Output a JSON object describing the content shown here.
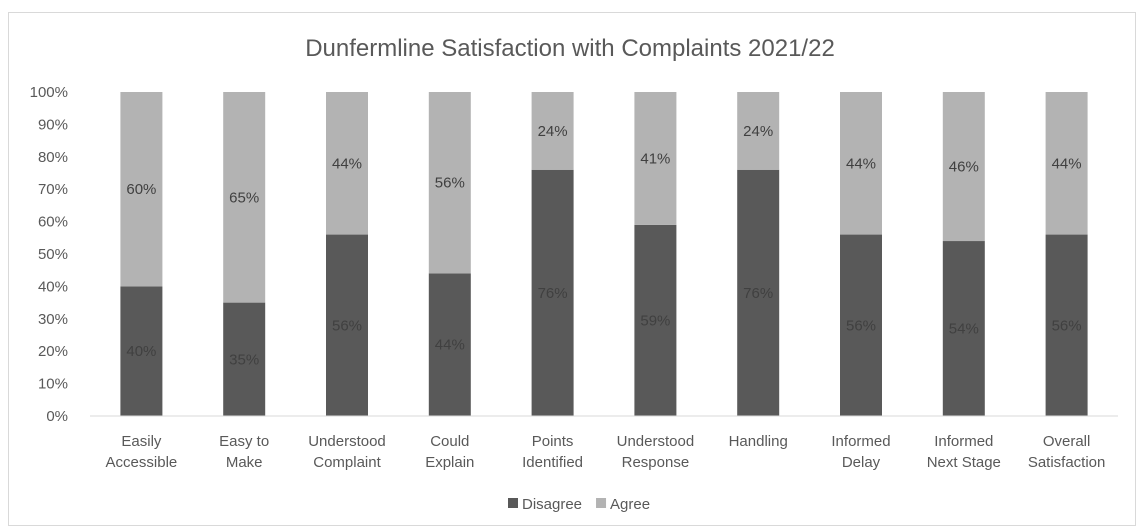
{
  "chart_data": {
    "type": "bar",
    "stacked": true,
    "title": "Dunfermline Satisfaction with Complaints 2021/22",
    "xlabel": "",
    "ylabel": "",
    "ylim": [
      0,
      100
    ],
    "y_ticks": [
      "0%",
      "10%",
      "20%",
      "30%",
      "40%",
      "50%",
      "60%",
      "70%",
      "80%",
      "90%",
      "100%"
    ],
    "categories": [
      [
        "Easily",
        "Accessible"
      ],
      [
        "Easy to",
        "Make"
      ],
      [
        "Understood",
        "Complaint"
      ],
      [
        "Could",
        "Explain"
      ],
      [
        "Points",
        "Identified"
      ],
      [
        "Understood",
        "Response"
      ],
      [
        "Handling"
      ],
      [
        "Informed",
        "Delay"
      ],
      [
        "Informed",
        "Next Stage"
      ],
      [
        "Overall",
        "Satisfaction"
      ]
    ],
    "series": [
      {
        "name": "Disagree",
        "color": "#595959",
        "values": [
          40,
          35,
          56,
          44,
          76,
          59,
          76,
          56,
          54,
          56
        ]
      },
      {
        "name": "Agree",
        "color": "#b3b3b3",
        "values": [
          60,
          65,
          44,
          56,
          24,
          41,
          24,
          44,
          46,
          44
        ]
      }
    ],
    "legend_position": "bottom",
    "grid": false
  }
}
